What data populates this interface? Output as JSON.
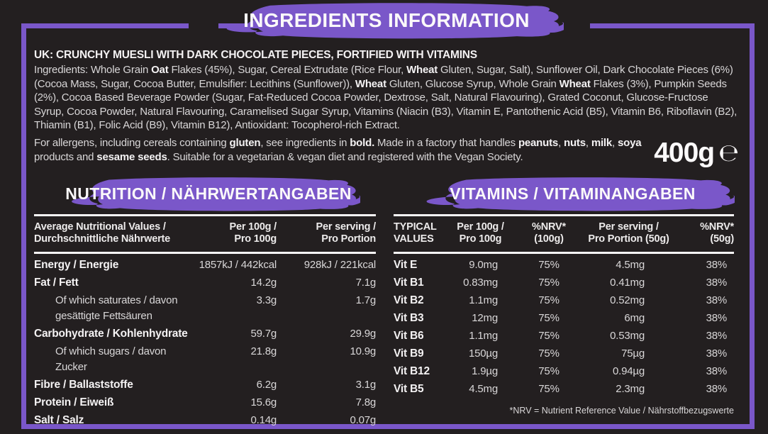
{
  "colors": {
    "background": "#231F20",
    "purple": "#7A57C9",
    "text": "#EDEBEB",
    "muted_text": "#D9D7D8",
    "rule_white": "#FAF8F9"
  },
  "header": {
    "title": "INGREDIENTS INFORMATION"
  },
  "intro": {
    "heading": "UK: CRUNCHY MUESLI WITH DARK CHOCOLATE PIECES, FORTIFIED WITH VITAMINS",
    "ingredients_segments": [
      {
        "t": "Ingredients: Whole Grain ",
        "b": false
      },
      {
        "t": "Oat",
        "b": true
      },
      {
        "t": " Flakes (45%), Sugar, Cereal Extrudate (Rice Flour, ",
        "b": false
      },
      {
        "t": "Wheat",
        "b": true
      },
      {
        "t": " Gluten, Sugar, Salt), Sunflower Oil, Dark Chocolate Pieces (6%) (Cocoa Mass, Sugar, Cocoa Butter, Emulsifier: Lecithins (Sunflower)), ",
        "b": false
      },
      {
        "t": "Wheat",
        "b": true
      },
      {
        "t": " Gluten, Glucose Syrup, Whole Grain ",
        "b": false
      },
      {
        "t": "Wheat",
        "b": true
      },
      {
        "t": " Flakes (3%), Pumpkin Seeds (2%), Cocoa Based Beverage Powder (Sugar, Fat-Reduced Cocoa Powder, Dextrose, Salt, Natural Flavouring), Grated Coconut, Glucose-Fructose Syrup, Cocoa Powder, Natural Flavouring, Caramelised Sugar Syrup, Vitamins (Niacin (B3), Vitamin E, Pantothenic Acid (B5), Vitamin B6, Riboflavin (B2), Thiamin (B1), Folic Acid (B9), Vitamin B12), Antioxidant: Tocopherol-rich Extract.",
        "b": false
      }
    ]
  },
  "allergens": {
    "segments": [
      {
        "t": "For allergens, including cereals containing ",
        "b": false
      },
      {
        "t": "gluten",
        "b": true
      },
      {
        "t": ", see ingredients in ",
        "b": false
      },
      {
        "t": "bold.",
        "b": true
      },
      {
        "t": " Made in a factory that handles ",
        "b": false
      },
      {
        "t": "peanuts",
        "b": true
      },
      {
        "t": ", ",
        "b": false
      },
      {
        "t": "nuts",
        "b": true
      },
      {
        "t": ", ",
        "b": false
      },
      {
        "t": "milk",
        "b": true
      },
      {
        "t": ", ",
        "b": false
      },
      {
        "t": "soya",
        "b": true
      },
      {
        "t": " products and ",
        "b": false
      },
      {
        "t": "sesame seeds",
        "b": true
      },
      {
        "t": ". Suitable for a vegetarian & vegan diet and registered with the Vegan Society.",
        "b": false
      }
    ]
  },
  "weight": {
    "value": "400g",
    "estimated_sign": "℮"
  },
  "nutrition": {
    "title": "NUTRITION / NÄHRWERTANGABEN",
    "columns": [
      {
        "lines": [
          "Average Nutritional Values /",
          "Durchschnittliche Nährwerte"
        ],
        "align": "l"
      },
      {
        "lines": [
          "Per 100g /",
          "Pro 100g"
        ],
        "align": "r"
      },
      {
        "lines": [
          "Per serving /",
          "Pro Portion"
        ],
        "align": "r"
      }
    ],
    "rows": [
      {
        "label": "Energy / Energie",
        "bold": true,
        "indent": false,
        "per_100g": "1857kJ / 442kcal",
        "per_serving": "928kJ / 221kcal"
      },
      {
        "label": "Fat / Fett",
        "bold": true,
        "indent": false,
        "per_100g": "14.2g",
        "per_serving": "7.1g"
      },
      {
        "label": "Of which saturates / davon gesättigte Fettsäuren",
        "bold": false,
        "indent": true,
        "per_100g": "3.3g",
        "per_serving": "1.7g"
      },
      {
        "label": "Carbohydrate / Kohlenhydrate",
        "bold": true,
        "indent": false,
        "per_100g": "59.7g",
        "per_serving": "29.9g"
      },
      {
        "label": "Of which sugars / davon Zucker",
        "bold": false,
        "indent": true,
        "per_100g": "21.8g",
        "per_serving": "10.9g"
      },
      {
        "label": "Fibre / Ballaststoffe",
        "bold": true,
        "indent": false,
        "per_100g": "6.2g",
        "per_serving": "3.1g"
      },
      {
        "label": "Protein / Eiweiß",
        "bold": true,
        "indent": false,
        "per_100g": "15.6g",
        "per_serving": "7.8g"
      },
      {
        "label": "Salt / Salz",
        "bold": true,
        "indent": false,
        "per_100g": "0.14g",
        "per_serving": "0.07g"
      }
    ]
  },
  "vitamins": {
    "title": "VITAMINS / VITAMINANGABEN",
    "columns": [
      {
        "lines": [
          "TYPICAL",
          "VALUES"
        ],
        "align": "l"
      },
      {
        "lines": [
          "Per 100g /",
          "Pro 100g"
        ],
        "align": "c"
      },
      {
        "lines": [
          "%NRV*",
          "(100g)"
        ],
        "align": "c"
      },
      {
        "lines": [
          "Per serving /",
          "Pro Portion (50g)"
        ],
        "align": "c"
      },
      {
        "lines": [
          "%NRV*",
          "(50g)"
        ],
        "align": "r"
      }
    ],
    "rows": [
      {
        "label": "Vit E",
        "per_100g": "9.0mg",
        "nrv_100g": "75%",
        "per_serving": "4.5mg",
        "nrv_50g": "38%"
      },
      {
        "label": "Vit B1",
        "per_100g": "0.83mg",
        "nrv_100g": "75%",
        "per_serving": "0.41mg",
        "nrv_50g": "38%"
      },
      {
        "label": "Vit B2",
        "per_100g": "1.1mg",
        "nrv_100g": "75%",
        "per_serving": "0.52mg",
        "nrv_50g": "38%"
      },
      {
        "label": "Vit B3",
        "per_100g": "12mg",
        "nrv_100g": "75%",
        "per_serving": "6mg",
        "nrv_50g": "38%"
      },
      {
        "label": "Vit B6",
        "per_100g": "1.1mg",
        "nrv_100g": "75%",
        "per_serving": "0.53mg",
        "nrv_50g": "38%"
      },
      {
        "label": "Vit B9",
        "per_100g": "150µg",
        "nrv_100g": "75%",
        "per_serving": "75µg",
        "nrv_50g": "38%"
      },
      {
        "label": "Vit B12",
        "per_100g": "1.9µg",
        "nrv_100g": "75%",
        "per_serving": "0.94µg",
        "nrv_50g": "38%"
      },
      {
        "label": "Vit B5",
        "per_100g": "4.5mg",
        "nrv_100g": "75%",
        "per_serving": "2.3mg",
        "nrv_50g": "38%"
      }
    ],
    "footnote": "*NRV = Nutrient Reference Value / Nährstoffbezugswerte"
  }
}
